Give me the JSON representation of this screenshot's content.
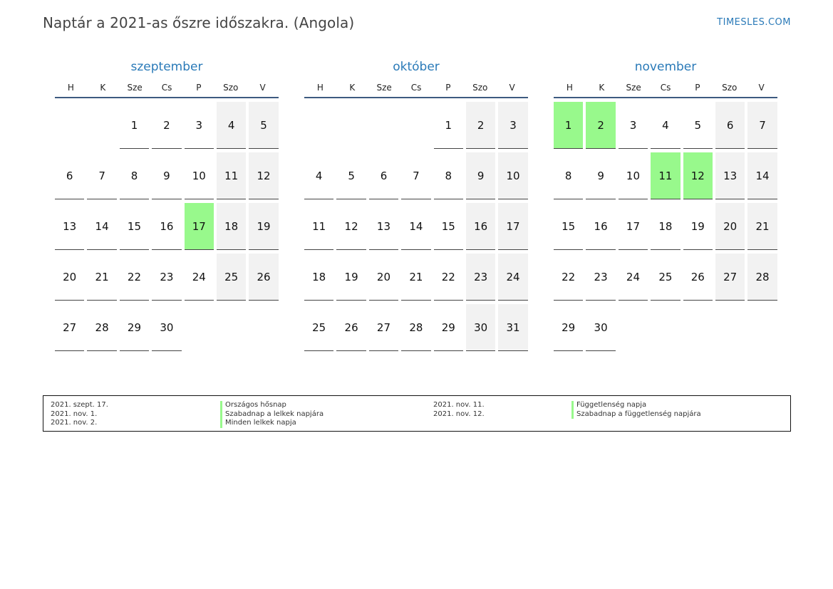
{
  "header": {
    "title": "Naptár a 2021-as őszre időszakra. (Angola)",
    "brand": "TIMESLES.COM"
  },
  "weekdays": [
    "H",
    "K",
    "Sze",
    "Cs",
    "P",
    "Szo",
    "V"
  ],
  "months": [
    {
      "name": "szeptember",
      "offset": 2,
      "days": 30,
      "holidays": [
        17
      ]
    },
    {
      "name": "október",
      "offset": 4,
      "days": 31,
      "holidays": []
    },
    {
      "name": "november",
      "offset": 0,
      "days": 30,
      "holidays": [
        1,
        2,
        11,
        12
      ]
    }
  ],
  "legend": {
    "left": [
      {
        "date": "2021. szept. 17.",
        "name": "Országos hősnap"
      },
      {
        "date": "2021. nov. 1.",
        "name": "Szabadnap a lelkek napjára"
      },
      {
        "date": "2021. nov. 2.",
        "name": "Minden lelkek napja"
      }
    ],
    "right": [
      {
        "date": "2021. nov. 11.",
        "name": "Függetlenség napja"
      },
      {
        "date": "2021. nov. 12.",
        "name": "Szabadnap a függetlenség napjára"
      }
    ]
  },
  "colors": {
    "holiday": "#98f98c",
    "weekend": "#f2f2f2",
    "accent": "#2a7ab8"
  }
}
